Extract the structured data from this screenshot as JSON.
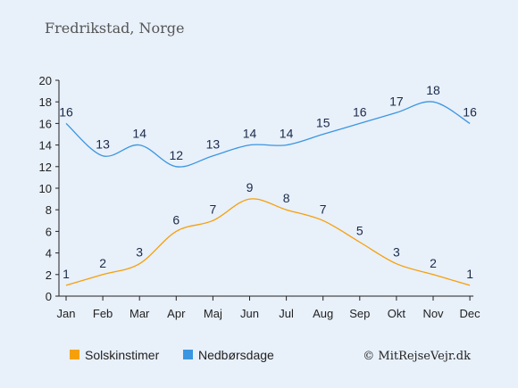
{
  "chart_data": {
    "type": "line",
    "title": "Fredrikstad, Norge",
    "categories": [
      "Jan",
      "Feb",
      "Mar",
      "Apr",
      "Maj",
      "Jun",
      "Jul",
      "Aug",
      "Sep",
      "Okt",
      "Nov",
      "Dec"
    ],
    "ylim": [
      0,
      20
    ],
    "yticks": [
      0,
      2,
      4,
      6,
      8,
      10,
      12,
      14,
      16,
      18,
      20
    ],
    "grid": false,
    "legend_position": "bottom",
    "series": [
      {
        "name": "Solskinstimer",
        "color": "#f5a00a",
        "values": [
          1,
          2,
          3,
          6,
          7,
          9,
          8,
          7,
          5,
          3,
          2,
          1
        ]
      },
      {
        "name": "Nedbørsdage",
        "color": "#3a96e0",
        "values": [
          16,
          13,
          14,
          12,
          13,
          14,
          14,
          15,
          16,
          17,
          18,
          16
        ]
      }
    ]
  },
  "credit": "© MitRejseVejr.dk"
}
